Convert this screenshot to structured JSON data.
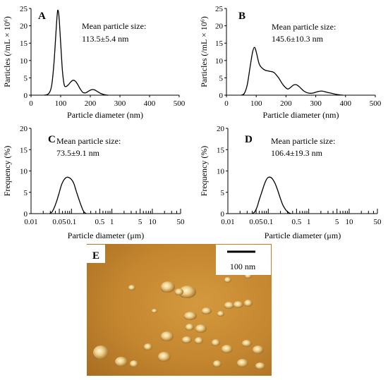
{
  "chart_data": [
    {
      "panel": "A",
      "type": "line",
      "annotation_title": "Mean particle size:",
      "annotation_value": "113.5±5.4 nm",
      "xlabel": "Particle diameter (nm)",
      "ylabel": "Particles (/mL × 10⁶)",
      "xlim": [
        0,
        500
      ],
      "ylim": [
        0,
        25
      ],
      "xticks": [
        "0",
        "100",
        "200",
        "300",
        "400",
        "500"
      ],
      "yticks": [
        "0",
        "5",
        "10",
        "15",
        "20",
        "25"
      ],
      "x": [
        45,
        60,
        70,
        78,
        84,
        88,
        91,
        95,
        100,
        106,
        112,
        118,
        126,
        134,
        142,
        150,
        158,
        166,
        175,
        185,
        195,
        205,
        215,
        225,
        235,
        245,
        255,
        260
      ],
      "y": [
        0,
        0.5,
        3,
        10,
        18,
        23,
        24.5,
        22,
        15,
        7,
        3,
        2.5,
        3,
        3.8,
        4.3,
        4,
        3,
        1.8,
        0.8,
        0.7,
        1.2,
        1.6,
        1.5,
        1.0,
        0.5,
        0.2,
        0.05,
        0
      ]
    },
    {
      "panel": "B",
      "type": "line",
      "annotation_title": "Mean particle size:",
      "annotation_value": "145.6±10.3 nm",
      "xlabel": "Particle diameter (nm)",
      "ylabel": "Particles (/mL × 10⁶)",
      "xlim": [
        0,
        500
      ],
      "ylim": [
        0,
        25
      ],
      "xticks": [
        "0",
        "100",
        "200",
        "300",
        "400",
        "500"
      ],
      "yticks": [
        "0",
        "5",
        "10",
        "15",
        "20",
        "25"
      ],
      "x": [
        50,
        60,
        70,
        80,
        88,
        94,
        100,
        110,
        120,
        130,
        145,
        160,
        175,
        190,
        205,
        215,
        225,
        235,
        245,
        260,
        275,
        290,
        305,
        320,
        335,
        350,
        365,
        380,
        392
      ],
      "y": [
        0,
        0.5,
        3,
        8.5,
        12.5,
        13.8,
        12.5,
        9,
        7.8,
        7.2,
        6.9,
        6.5,
        5,
        3,
        1.8,
        2.2,
        2.9,
        3,
        2.4,
        1.2,
        0.6,
        0.6,
        1,
        1.2,
        0.9,
        0.6,
        0.3,
        0.1,
        0
      ]
    },
    {
      "panel": "C",
      "type": "line",
      "xscale": "log",
      "annotation_title": "Mean particle size:",
      "annotation_value": "73.5±9.1  nm",
      "xlabel": "Particle diameter (μm)",
      "ylabel": "Frequency (%)",
      "xlim": [
        0.01,
        50
      ],
      "ylim": [
        0,
        20
      ],
      "xtick_labels": [
        {
          "v": 0.01,
          "t": "0.01"
        },
        {
          "v": 0.05,
          "t": "0.05"
        },
        {
          "v": 0.1,
          "t": "0.1"
        },
        {
          "v": 0.5,
          "t": "0.5"
        },
        {
          "v": 1,
          "t": "1"
        },
        {
          "v": 5,
          "t": "5"
        },
        {
          "v": 10,
          "t": "10"
        },
        {
          "v": 50,
          "t": "50"
        }
      ],
      "yticks": [
        "0",
        "5",
        "10",
        "15",
        "20"
      ],
      "x": [
        0.029,
        0.033,
        0.038,
        0.044,
        0.05,
        0.057,
        0.065,
        0.075,
        0.085,
        0.1,
        0.115,
        0.13,
        0.15,
        0.175,
        0.2,
        0.23
      ],
      "y": [
        0,
        0.4,
        1.5,
        3.2,
        5,
        6.8,
        7.9,
        8.5,
        8.5,
        8.0,
        7.0,
        5.4,
        3.6,
        1.8,
        0.5,
        0
      ]
    },
    {
      "panel": "D",
      "type": "line",
      "xscale": "log",
      "annotation_title": "Mean particle size:",
      "annotation_value": "106.4±19.3 nm",
      "xlabel": "Particle diameter (μm)",
      "ylabel": "Frequency (%)",
      "xlim": [
        0.01,
        50
      ],
      "ylim": [
        0,
        20
      ],
      "xtick_labels": [
        {
          "v": 0.01,
          "t": "0.01"
        },
        {
          "v": 0.05,
          "t": "0.05"
        },
        {
          "v": 0.1,
          "t": "0.1"
        },
        {
          "v": 0.5,
          "t": "0.5"
        },
        {
          "v": 1,
          "t": "1"
        },
        {
          "v": 5,
          "t": "5"
        },
        {
          "v": 10,
          "t": "10"
        },
        {
          "v": 50,
          "t": "50"
        }
      ],
      "yticks": [
        "0",
        "5",
        "10",
        "15",
        "20"
      ],
      "x": [
        0.04,
        0.046,
        0.053,
        0.06,
        0.07,
        0.08,
        0.09,
        0.1,
        0.115,
        0.13,
        0.15,
        0.175,
        0.2,
        0.23,
        0.27,
        0.32,
        0.37
      ],
      "y": [
        0,
        0.4,
        1.6,
        3.3,
        5.2,
        6.9,
        8.0,
        8.5,
        8.5,
        8.0,
        6.9,
        5.2,
        3.5,
        2.0,
        0.9,
        0.2,
        0
      ]
    }
  ],
  "image_panel": {
    "label": "E",
    "scale_bar_label": "100 nm"
  }
}
